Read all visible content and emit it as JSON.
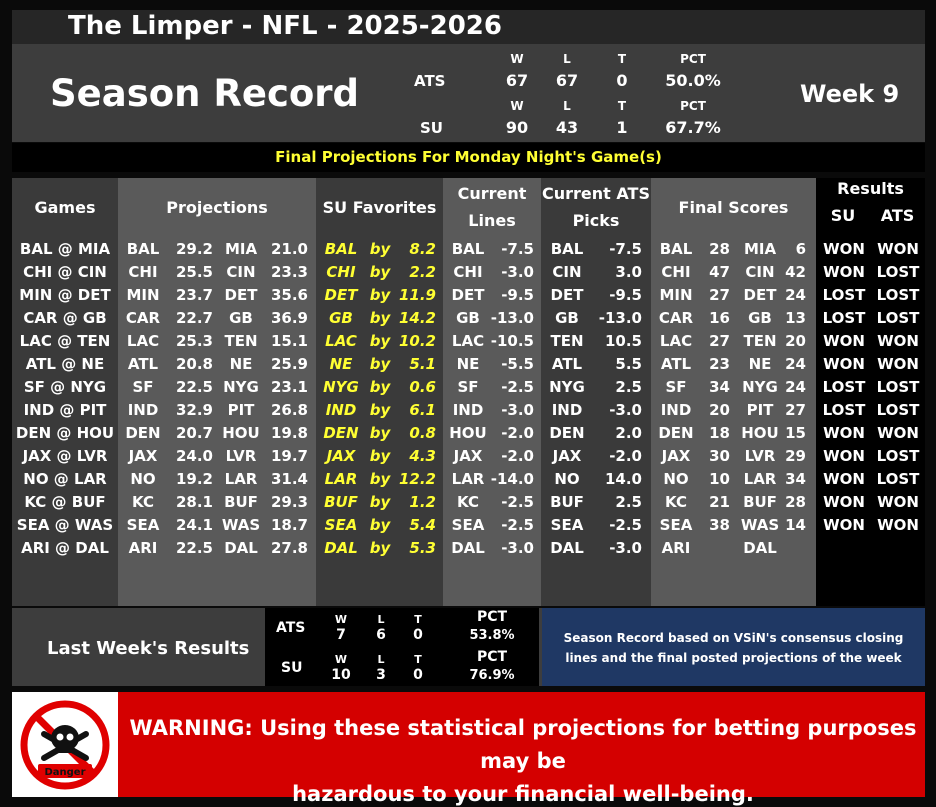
{
  "header": {
    "title": "The Limper - NFL - 2025-2026"
  },
  "season": {
    "title": "Season Record",
    "week": "Week 9",
    "ats": {
      "label": "ATS",
      "w_h": "W",
      "l_h": "L",
      "t_h": "T",
      "pct_h": "PCT",
      "w": "67",
      "l": "67",
      "t": "0",
      "pct": "50.0%"
    },
    "su": {
      "label": "SU",
      "w_h": "W",
      "l_h": "L",
      "t_h": "T",
      "pct_h": "PCT",
      "w": "90",
      "l": "43",
      "t": "1",
      "pct": "67.7%"
    }
  },
  "subtitle": "Final Projections For Monday Night's Game(s)",
  "columns": {
    "games": "Games",
    "projections": "Projections",
    "su_favorites": "SU Favorites",
    "current_lines_1": "Current",
    "current_lines_2": "Lines",
    "ats_picks_1": "Current ATS",
    "ats_picks_2": "Picks",
    "final_scores": "Final Scores",
    "results": "Results",
    "results_su": "SU",
    "results_ats": "ATS"
  },
  "rows": [
    {
      "game": "BAL @ MIA",
      "p1t": "BAL",
      "p1s": "29.2",
      "p2t": "MIA",
      "p2s": "21.0",
      "fav": "BAL",
      "by": "by",
      "margin": "8.2",
      "lt": "BAL",
      "lv": "-7.5",
      "pt": "BAL",
      "pv": "-7.5",
      "s1t": "BAL",
      "s1": "28",
      "s2t": "MIA",
      "s2": "6",
      "su": "WON",
      "ats": "WON"
    },
    {
      "game": "CHI @ CIN",
      "p1t": "CHI",
      "p1s": "25.5",
      "p2t": "CIN",
      "p2s": "23.3",
      "fav": "CHI",
      "by": "by",
      "margin": "2.2",
      "lt": "CHI",
      "lv": "-3.0",
      "pt": "CIN",
      "pv": "3.0",
      "s1t": "CHI",
      "s1": "47",
      "s2t": "CIN",
      "s2": "42",
      "su": "WON",
      "ats": "LOST"
    },
    {
      "game": "MIN @ DET",
      "p1t": "MIN",
      "p1s": "23.7",
      "p2t": "DET",
      "p2s": "35.6",
      "fav": "DET",
      "by": "by",
      "margin": "11.9",
      "lt": "DET",
      "lv": "-9.5",
      "pt": "DET",
      "pv": "-9.5",
      "s1t": "MIN",
      "s1": "27",
      "s2t": "DET",
      "s2": "24",
      "su": "LOST",
      "ats": "LOST"
    },
    {
      "game": "CAR @ GB",
      "p1t": "CAR",
      "p1s": "22.7",
      "p2t": "GB",
      "p2s": "36.9",
      "fav": "GB",
      "by": "by",
      "margin": "14.2",
      "lt": "GB",
      "lv": "-13.0",
      "pt": "GB",
      "pv": "-13.0",
      "s1t": "CAR",
      "s1": "16",
      "s2t": "GB",
      "s2": "13",
      "su": "LOST",
      "ats": "LOST"
    },
    {
      "game": "LAC @ TEN",
      "p1t": "LAC",
      "p1s": "25.3",
      "p2t": "TEN",
      "p2s": "15.1",
      "fav": "LAC",
      "by": "by",
      "margin": "10.2",
      "lt": "LAC",
      "lv": "-10.5",
      "pt": "TEN",
      "pv": "10.5",
      "s1t": "LAC",
      "s1": "27",
      "s2t": "TEN",
      "s2": "20",
      "su": "WON",
      "ats": "WON"
    },
    {
      "game": "ATL @ NE",
      "p1t": "ATL",
      "p1s": "20.8",
      "p2t": "NE",
      "p2s": "25.9",
      "fav": "NE",
      "by": "by",
      "margin": "5.1",
      "lt": "NE",
      "lv": "-5.5",
      "pt": "ATL",
      "pv": "5.5",
      "s1t": "ATL",
      "s1": "23",
      "s2t": "NE",
      "s2": "24",
      "su": "WON",
      "ats": "WON"
    },
    {
      "game": "SF @ NYG",
      "p1t": "SF",
      "p1s": "22.5",
      "p2t": "NYG",
      "p2s": "23.1",
      "fav": "NYG",
      "by": "by",
      "margin": "0.6",
      "lt": "SF",
      "lv": "-2.5",
      "pt": "NYG",
      "pv": "2.5",
      "s1t": "SF",
      "s1": "34",
      "s2t": "NYG",
      "s2": "24",
      "su": "LOST",
      "ats": "LOST"
    },
    {
      "game": "IND @ PIT",
      "p1t": "IND",
      "p1s": "32.9",
      "p2t": "PIT",
      "p2s": "26.8",
      "fav": "IND",
      "by": "by",
      "margin": "6.1",
      "lt": "IND",
      "lv": "-3.0",
      "pt": "IND",
      "pv": "-3.0",
      "s1t": "IND",
      "s1": "20",
      "s2t": "PIT",
      "s2": "27",
      "su": "LOST",
      "ats": "LOST"
    },
    {
      "game": "DEN @ HOU",
      "p1t": "DEN",
      "p1s": "20.7",
      "p2t": "HOU",
      "p2s": "19.8",
      "fav": "DEN",
      "by": "by",
      "margin": "0.8",
      "lt": "HOU",
      "lv": "-2.0",
      "pt": "DEN",
      "pv": "2.0",
      "s1t": "DEN",
      "s1": "18",
      "s2t": "HOU",
      "s2": "15",
      "su": "WON",
      "ats": "WON"
    },
    {
      "game": "JAX @ LVR",
      "p1t": "JAX",
      "p1s": "24.0",
      "p2t": "LVR",
      "p2s": "19.7",
      "fav": "JAX",
      "by": "by",
      "margin": "4.3",
      "lt": "JAX",
      "lv": "-2.0",
      "pt": "JAX",
      "pv": "-2.0",
      "s1t": "JAX",
      "s1": "30",
      "s2t": "LVR",
      "s2": "29",
      "su": "WON",
      "ats": "LOST"
    },
    {
      "game": "NO @ LAR",
      "p1t": "NO",
      "p1s": "19.2",
      "p2t": "LAR",
      "p2s": "31.4",
      "fav": "LAR",
      "by": "by",
      "margin": "12.2",
      "lt": "LAR",
      "lv": "-14.0",
      "pt": "NO",
      "pv": "14.0",
      "s1t": "NO",
      "s1": "10",
      "s2t": "LAR",
      "s2": "34",
      "su": "WON",
      "ats": "LOST"
    },
    {
      "game": "KC @ BUF",
      "p1t": "KC",
      "p1s": "28.1",
      "p2t": "BUF",
      "p2s": "29.3",
      "fav": "BUF",
      "by": "by",
      "margin": "1.2",
      "lt": "KC",
      "lv": "-2.5",
      "pt": "BUF",
      "pv": "2.5",
      "s1t": "KC",
      "s1": "21",
      "s2t": "BUF",
      "s2": "28",
      "su": "WON",
      "ats": "WON"
    },
    {
      "game": "SEA @ WAS",
      "p1t": "SEA",
      "p1s": "24.1",
      "p2t": "WAS",
      "p2s": "18.7",
      "fav": "SEA",
      "by": "by",
      "margin": "5.4",
      "lt": "SEA",
      "lv": "-2.5",
      "pt": "SEA",
      "pv": "-2.5",
      "s1t": "SEA",
      "s1": "38",
      "s2t": "WAS",
      "s2": "14",
      "su": "WON",
      "ats": "WON"
    },
    {
      "game": "ARI @ DAL",
      "p1t": "ARI",
      "p1s": "22.5",
      "p2t": "DAL",
      "p2s": "27.8",
      "fav": "DAL",
      "by": "by",
      "margin": "5.3",
      "lt": "DAL",
      "lv": "-3.0",
      "pt": "DAL",
      "pv": "-3.0",
      "s1t": "ARI",
      "s1": "",
      "s2t": "DAL",
      "s2": "",
      "su": "",
      "ats": ""
    }
  ],
  "last_week": {
    "title": "Last Week's Results",
    "ats": {
      "label": "ATS",
      "w_h": "W",
      "l_h": "L",
      "t_h": "T",
      "pct_h": "PCT",
      "w": "7",
      "l": "6",
      "t": "0",
      "pct": "53.8%"
    },
    "su": {
      "label": "SU",
      "w_h": "W",
      "l_h": "L",
      "t_h": "T",
      "pct_h": "PCT",
      "w": "10",
      "l": "3",
      "t": "0",
      "pct": "76.9%"
    }
  },
  "note": {
    "line1": "Season Record based on VSiN's consensus closing",
    "line2": "lines and the final posted projections of the week"
  },
  "warning": {
    "line1": "WARNING: Using these statistical projections for betting purposes may be",
    "line2": "hazardous to your financial well-being.",
    "icon_label": "Danger",
    "icon": "skull-crossbones-icon"
  },
  "colors": {
    "favorite": "#ffff33",
    "warning_red": "#d40000",
    "note_blue": "#1f3864"
  }
}
